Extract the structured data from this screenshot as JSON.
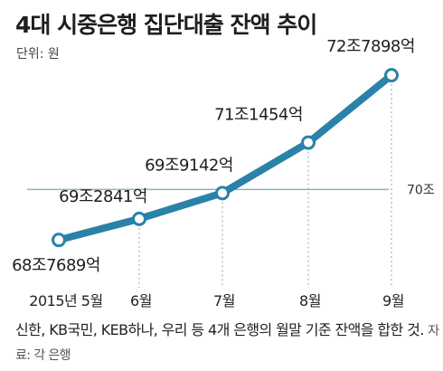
{
  "title": "4대 시중은행 집단대출 잔액 추이",
  "unit": "단위: 원",
  "note": "신한, KB국민, KEB하나, 우리 등 4개 은행의 월말 기준 잔액을 합한 것.",
  "source": "자료: 각 은행",
  "colors": {
    "line": "#2a82a8",
    "marker_fill": "#ffffff",
    "reference_line": "#8fb3c6",
    "guide_line": "#9aa0a4"
  },
  "chart_data": {
    "type": "line",
    "categories": [
      "2015년 5월",
      "6월",
      "7월",
      "8월",
      "9월"
    ],
    "values": [
      68.7689,
      69.2841,
      69.9142,
      71.1454,
      72.7898
    ],
    "data_labels": [
      "68조7689억",
      "69조2841억",
      "69조9142억",
      "71조1454억",
      "72조7898억"
    ],
    "reference_line": {
      "value": 70,
      "label": "70조"
    },
    "ylim": [
      68.0,
      73.3
    ],
    "grid": false,
    "legend": "none"
  }
}
